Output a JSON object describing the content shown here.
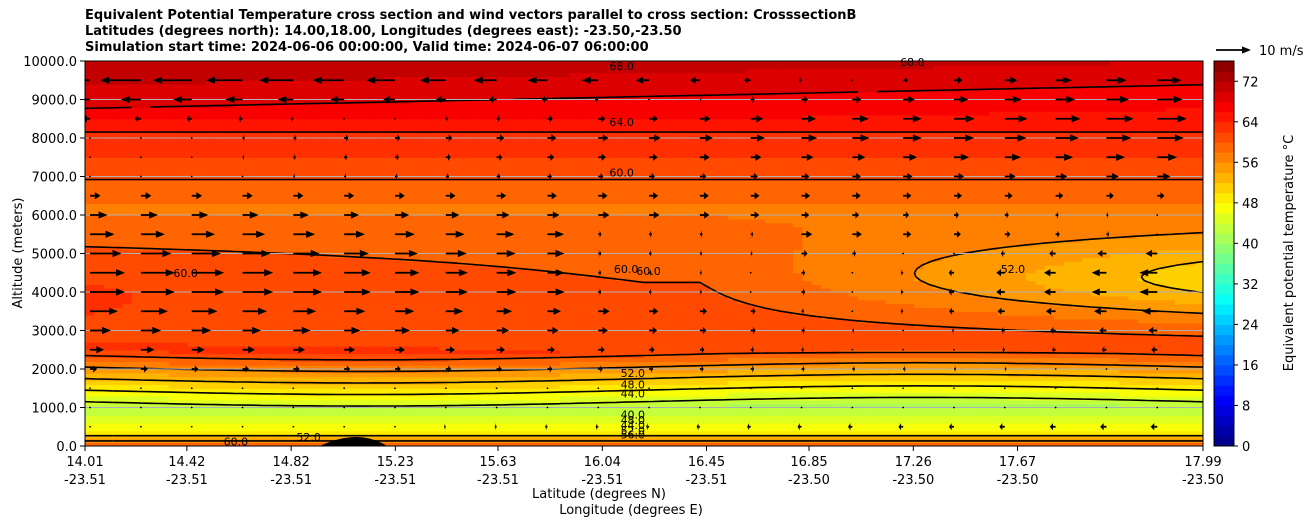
{
  "chart_data": {
    "type": "contourf",
    "title_lines": [
      "Equivalent Potential Temperature cross section and wind vectors parallel to cross section: CrosssectionB",
      "Latitudes (degrees north): 14.00,18.00, Longitudes (degrees east): -23.50,-23.50",
      "Simulation start time: 2024-06-06 00:00:00, Valid time: 2024-06-07 06:00:00"
    ],
    "ylabel": "Altitude (meters)",
    "xlabel_lat": "Latitude (degrees N)",
    "xlabel_lon": "Longitude (degrees E)",
    "ylim": [
      0,
      10000
    ],
    "yticks": [
      "0.0",
      "1000.0",
      "2000.0",
      "3000.0",
      "4000.0",
      "5000.0",
      "6000.0",
      "7000.0",
      "8000.0",
      "9000.0",
      "10000.0"
    ],
    "ytick_values": [
      0,
      1000,
      2000,
      3000,
      4000,
      5000,
      6000,
      7000,
      8000,
      9000,
      10000
    ],
    "xticks": [
      {
        "lat": "14.01",
        "lon": "-23.51"
      },
      {
        "lat": "14.42",
        "lon": "-23.51"
      },
      {
        "lat": "14.82",
        "lon": "-23.51"
      },
      {
        "lat": "15.23",
        "lon": "-23.51"
      },
      {
        "lat": "15.63",
        "lon": "-23.51"
      },
      {
        "lat": "16.04",
        "lon": "-23.51"
      },
      {
        "lat": "16.45",
        "lon": "-23.51"
      },
      {
        "lat": "16.85",
        "lon": "-23.50"
      },
      {
        "lat": "17.26",
        "lon": "-23.50"
      },
      {
        "lat": "17.67",
        "lon": "-23.50"
      },
      {
        "lat": "17.99",
        "lon": "-23.50"
      }
    ],
    "xtick_fractions": [
      0,
      0.0911,
      0.1844,
      0.2776,
      0.3694,
      0.4627,
      0.5559,
      0.6476,
      0.7409,
      0.8341,
      1.0
    ],
    "colorbar": {
      "label": "Equivalent potential temperature $^\\circ$C",
      "min": 0,
      "max": 76,
      "step": 2,
      "ticks": [
        0,
        8,
        16,
        24,
        32,
        40,
        48,
        56,
        64,
        72
      ]
    },
    "contour_levels": [
      36,
      40,
      44,
      48,
      52,
      56,
      60,
      64,
      68
    ],
    "contour_labels": [
      {
        "text": "68.0",
        "x": 0.48,
        "y": 9870
      },
      {
        "text": "68.0",
        "x": 0.74,
        "y": 9980
      },
      {
        "text": "64.0",
        "x": 0.48,
        "y": 8420
      },
      {
        "text": "60.0",
        "x": 0.48,
        "y": 7100
      },
      {
        "text": "60.0",
        "x": 0.484,
        "y": 4600
      },
      {
        "text": "60.0",
        "x": 0.504,
        "y": 4550
      },
      {
        "text": "52.0",
        "x": 0.49,
        "y": 1900
      },
      {
        "text": "48.0",
        "x": 0.49,
        "y": 1600
      },
      {
        "text": "44.0",
        "x": 0.49,
        "y": 1370
      },
      {
        "text": "40.0",
        "x": 0.49,
        "y": 820
      },
      {
        "text": "48.0",
        "x": 0.49,
        "y": 680
      },
      {
        "text": "44.0",
        "x": 0.49,
        "y": 540
      },
      {
        "text": "52.0",
        "x": 0.49,
        "y": 400
      },
      {
        "text": "56.0",
        "x": 0.49,
        "y": 300
      },
      {
        "text": "60.0",
        "x": 0.135,
        "y": 120
      },
      {
        "text": "52.0",
        "x": 0.2,
        "y": 240
      },
      {
        "text": "60.0",
        "x": 0.09,
        "y": 4500
      },
      {
        "text": "52.0",
        "x": 0.83,
        "y": 4600
      }
    ],
    "quiver_key": {
      "label": "10 m/s",
      "value": 10
    },
    "wind_profile": {
      "heights": [
        9500,
        9000,
        8500,
        8000,
        7500,
        7000,
        6500,
        6000,
        5500,
        5000,
        4500,
        4000,
        3500,
        3000,
        2500,
        2000,
        1500,
        1000,
        500
      ],
      "u_left": [
        -12,
        -6,
        -2,
        0,
        0,
        0,
        3,
        5,
        7,
        9,
        10,
        10,
        8,
        6,
        4,
        2,
        0,
        0,
        0
      ],
      "u_right": [
        8,
        8,
        9,
        8,
        6,
        4,
        2,
        0,
        0,
        -4,
        -6,
        -6,
        -5,
        -3,
        -2,
        0,
        0,
        0,
        -2
      ]
    },
    "colors": {
      "contour": "#000000",
      "arrow": "#000000"
    }
  }
}
